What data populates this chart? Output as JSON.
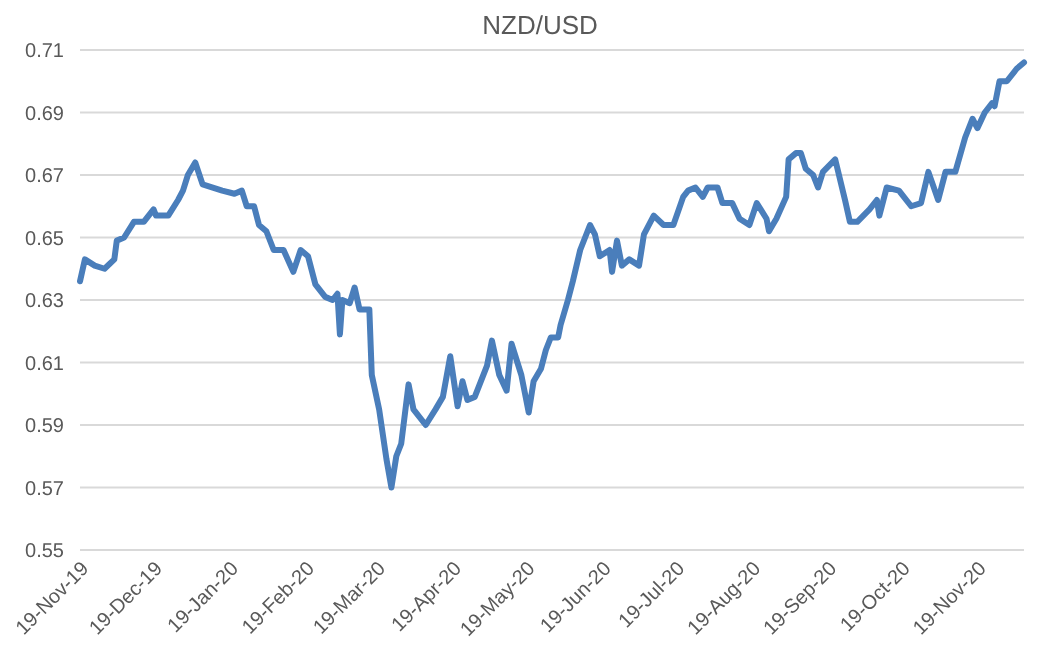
{
  "chart_data": {
    "type": "line",
    "title": "NZD/USD",
    "grid": "y",
    "xlim": [
      "2019-11-19",
      "2020-12-08"
    ],
    "ylim": [
      0.55,
      0.71
    ],
    "yticks": [
      {
        "value": 0.55,
        "label": "0.55"
      },
      {
        "value": 0.57,
        "label": "0.57"
      },
      {
        "value": 0.59,
        "label": "0.59"
      },
      {
        "value": 0.61,
        "label": "0.61"
      },
      {
        "value": 0.63,
        "label": "0.63"
      },
      {
        "value": 0.65,
        "label": "0.65"
      },
      {
        "value": 0.67,
        "label": "0.67"
      },
      {
        "value": 0.69,
        "label": "0.69"
      },
      {
        "value": 0.71,
        "label": "0.71"
      }
    ],
    "xticks": [
      {
        "value": "2019-11-19",
        "label": "19-Nov-19"
      },
      {
        "value": "2019-12-19",
        "label": "19-Dec-19"
      },
      {
        "value": "2020-01-19",
        "label": "19-Jan-20"
      },
      {
        "value": "2020-02-19",
        "label": "19-Feb-20"
      },
      {
        "value": "2020-03-19",
        "label": "19-Mar-20"
      },
      {
        "value": "2020-04-19",
        "label": "19-Apr-20"
      },
      {
        "value": "2020-05-19",
        "label": "19-May-20"
      },
      {
        "value": "2020-06-19",
        "label": "19-Jun-20"
      },
      {
        "value": "2020-07-19",
        "label": "19-Jul-20"
      },
      {
        "value": "2020-08-19",
        "label": "19-Aug-20"
      },
      {
        "value": "2020-09-19",
        "label": "19-Sep-20"
      },
      {
        "value": "2020-10-19",
        "label": "19-Oct-20"
      },
      {
        "value": "2020-11-19",
        "label": "19-Nov-20"
      }
    ],
    "x": [
      "2019-11-19",
      "2019-11-21",
      "2019-11-25",
      "2019-11-29",
      "2019-12-03",
      "2019-12-04",
      "2019-12-07",
      "2019-12-11",
      "2019-12-15",
      "2019-12-19",
      "2019-12-20",
      "2019-12-25",
      "2019-12-29",
      "2019-12-31",
      "2020-01-02",
      "2020-01-05",
      "2020-01-08",
      "2020-01-16",
      "2020-01-21",
      "2020-01-24",
      "2020-01-26",
      "2020-01-29",
      "2020-01-31",
      "2020-02-03",
      "2020-02-06",
      "2020-02-10",
      "2020-02-14",
      "2020-02-17",
      "2020-02-20",
      "2020-02-23",
      "2020-02-27",
      "2020-03-01",
      "2020-03-03",
      "2020-03-04",
      "2020-03-05",
      "2020-03-08",
      "2020-03-10",
      "2020-03-12",
      "2020-03-16",
      "2020-03-17",
      "2020-03-20",
      "2020-03-23",
      "2020-03-25",
      "2020-03-27",
      "2020-03-29",
      "2020-04-01",
      "2020-04-03",
      "2020-04-08",
      "2020-04-12",
      "2020-04-15",
      "2020-04-18",
      "2020-04-21",
      "2020-04-23",
      "2020-04-25",
      "2020-04-28",
      "2020-05-03",
      "2020-05-05",
      "2020-05-08",
      "2020-05-11",
      "2020-05-13",
      "2020-05-17",
      "2020-05-20",
      "2020-05-22",
      "2020-05-25",
      "2020-05-27",
      "2020-05-29",
      "2020-06-01",
      "2020-06-02",
      "2020-06-05",
      "2020-06-07",
      "2020-06-10",
      "2020-06-14",
      "2020-06-16",
      "2020-06-18",
      "2020-06-22",
      "2020-06-23",
      "2020-06-25",
      "2020-06-27",
      "2020-06-30",
      "2020-07-04",
      "2020-07-06",
      "2020-07-10",
      "2020-07-14",
      "2020-07-18",
      "2020-07-22",
      "2020-07-24",
      "2020-07-27",
      "2020-07-30",
      "2020-08-01",
      "2020-08-05",
      "2020-08-07",
      "2020-08-11",
      "2020-08-14",
      "2020-08-18",
      "2020-08-21",
      "2020-08-25",
      "2020-08-26",
      "2020-08-29",
      "2020-09-02",
      "2020-09-03",
      "2020-09-06",
      "2020-09-08",
      "2020-09-10",
      "2020-09-13",
      "2020-09-15",
      "2020-09-17",
      "2020-09-22",
      "2020-09-26",
      "2020-09-28",
      "2020-10-01",
      "2020-10-06",
      "2020-10-09",
      "2020-10-10",
      "2020-10-13",
      "2020-10-18",
      "2020-10-23",
      "2020-10-27",
      "2020-10-30",
      "2020-11-03",
      "2020-11-06",
      "2020-11-10",
      "2020-11-14",
      "2020-11-17",
      "2020-11-19",
      "2020-11-22",
      "2020-11-25",
      "2020-11-26",
      "2020-11-28",
      "2020-12-01",
      "2020-12-05",
      "2020-12-08"
    ],
    "series": [
      {
        "color": "#4a7ebb",
        "values": [
          0.636,
          0.643,
          0.641,
          0.64,
          0.643,
          0.649,
          0.65,
          0.655,
          0.655,
          0.659,
          0.657,
          0.657,
          0.662,
          0.665,
          0.67,
          0.674,
          0.667,
          0.665,
          0.664,
          0.665,
          0.66,
          0.66,
          0.654,
          0.652,
          0.646,
          0.646,
          0.639,
          0.646,
          0.644,
          0.635,
          0.631,
          0.63,
          0.632,
          0.619,
          0.63,
          0.629,
          0.634,
          0.627,
          0.627,
          0.606,
          0.595,
          0.579,
          0.57,
          0.58,
          0.584,
          0.603,
          0.595,
          0.59,
          0.595,
          0.599,
          0.612,
          0.596,
          0.604,
          0.598,
          0.599,
          0.609,
          0.617,
          0.606,
          0.601,
          0.616,
          0.606,
          0.594,
          0.604,
          0.608,
          0.614,
          0.618,
          0.618,
          0.622,
          0.63,
          0.636,
          0.646,
          0.654,
          0.651,
          0.644,
          0.646,
          0.639,
          0.649,
          0.641,
          0.643,
          0.641,
          0.651,
          0.657,
          0.654,
          0.654,
          0.663,
          0.665,
          0.666,
          0.663,
          0.666,
          0.666,
          0.661,
          0.661,
          0.656,
          0.654,
          0.661,
          0.656,
          0.652,
          0.656,
          0.663,
          0.675,
          0.677,
          0.677,
          0.672,
          0.67,
          0.666,
          0.671,
          0.675,
          0.662,
          0.655,
          0.655,
          0.659,
          0.662,
          0.657,
          0.666,
          0.665,
          0.66,
          0.661,
          0.671,
          0.662,
          0.671,
          0.671,
          0.682,
          0.688,
          0.685,
          0.69,
          0.693,
          0.692,
          0.7,
          0.7,
          0.704,
          0.706
        ]
      }
    ]
  }
}
